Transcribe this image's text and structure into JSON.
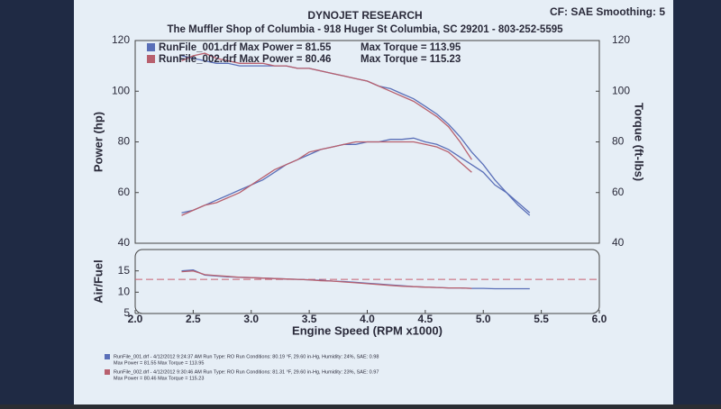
{
  "header": {
    "company": "DYNOJET RESEARCH",
    "settings": "CF: SAE  Smoothing: 5",
    "shop": "The Muffler Shop of Columbia - 918 Huger St  Columbia, SC  29201 - 803-252-5595"
  },
  "chart_data": [
    {
      "type": "line",
      "ylabel": "Power (hp)",
      "y2label": "Torque (ft-lbs)",
      "x": [
        2.4,
        2.5,
        2.6,
        2.7,
        2.8,
        2.9,
        3.0,
        3.1,
        3.2,
        3.3,
        3.4,
        3.5,
        3.6,
        3.7,
        3.8,
        3.9,
        4.0,
        4.1,
        4.2,
        4.3,
        4.4,
        4.5,
        4.6,
        4.7,
        4.8,
        4.9,
        5.0,
        5.1,
        5.2,
        5.3,
        5.4
      ],
      "xlim": [
        2,
        6
      ],
      "ylim": [
        40,
        120
      ],
      "yticks": [
        40,
        60,
        80,
        100,
        120
      ],
      "y2lim": [
        40,
        120
      ],
      "y2ticks": [
        40,
        60,
        80,
        100,
        120
      ],
      "series": [
        {
          "name": "RunFile_001.drf Max Power = 81.55",
          "color": "#5a6fb8",
          "values": [
            52,
            53,
            55,
            57,
            59,
            61,
            63,
            65,
            68,
            71,
            73,
            75,
            77,
            78,
            79,
            79,
            80,
            80,
            81,
            81,
            81.5,
            80,
            79,
            77,
            74,
            71,
            68,
            63,
            60,
            56,
            52
          ]
        },
        {
          "name": "RunFile_002.drf Max Power = 80.46",
          "color": "#b8606e",
          "values": [
            51,
            53,
            55,
            56,
            58,
            60,
            63,
            66,
            69,
            71,
            73,
            76,
            77,
            78,
            79,
            80,
            80,
            80,
            80,
            80,
            80,
            79,
            78,
            76,
            72,
            68,
            null,
            null,
            null,
            null,
            null
          ]
        },
        {
          "name": "Max Torque = 113.95",
          "color": "#5a6fb8",
          "axis": "y2",
          "values": [
            114,
            113,
            112,
            111,
            111,
            110,
            110,
            110,
            110,
            110,
            109,
            109,
            108,
            107,
            106,
            105,
            104,
            102,
            101,
            99,
            97,
            94,
            91,
            87,
            82,
            76,
            71,
            65,
            60,
            55,
            51
          ]
        },
        {
          "name": "Max Torque = 115.23",
          "color": "#b8606e",
          "axis": "y2",
          "values": [
            112,
            114,
            115,
            113,
            112,
            111,
            111,
            111,
            110,
            110,
            109,
            109,
            108,
            107,
            106,
            105,
            104,
            102,
            100,
            98,
            96,
            93,
            90,
            86,
            80,
            73,
            null,
            null,
            null,
            null,
            null
          ]
        }
      ]
    },
    {
      "type": "line",
      "ylabel": "Air/Fuel",
      "xlabel": "Engine Speed (RPM x1000)",
      "x": [
        2.4,
        2.5,
        2.6,
        2.7,
        2.8,
        2.9,
        3.0,
        3.1,
        3.2,
        3.3,
        3.4,
        3.5,
        3.6,
        3.7,
        3.8,
        3.9,
        4.0,
        4.1,
        4.2,
        4.3,
        4.4,
        4.5,
        4.6,
        4.7,
        4.8,
        4.9,
        5.0,
        5.1,
        5.2,
        5.3,
        5.4
      ],
      "xlim": [
        2,
        6
      ],
      "xticks": [
        {
          "value": 2,
          "label": "2.0"
        },
        {
          "value": 2.5,
          "label": "2.5"
        },
        {
          "value": 3,
          "label": "3.0"
        },
        {
          "value": 3.5,
          "label": "3.5"
        },
        {
          "value": 4,
          "label": "4.0"
        },
        {
          "value": 4.5,
          "label": "4.5"
        },
        {
          "value": 5,
          "label": "5.0"
        },
        {
          "value": 5.5,
          "label": "5.5"
        },
        {
          "value": 6,
          "label": "6.0"
        }
      ],
      "ylim": [
        5,
        20
      ],
      "yticks": [
        5,
        10,
        15
      ],
      "ref_line": 13,
      "ref_color": "#c86070",
      "series": [
        {
          "name": "RunFile_001.drf",
          "color": "#5a6fb8",
          "values": [
            15,
            15.2,
            14,
            13.8,
            13.6,
            13.5,
            13.4,
            13.3,
            13.2,
            13.1,
            13,
            12.9,
            12.8,
            12.6,
            12.5,
            12.3,
            12.1,
            11.9,
            11.7,
            11.5,
            11.3,
            11.2,
            11.1,
            11,
            11,
            10.9,
            10.9,
            10.8,
            10.8,
            10.8,
            10.8
          ]
        },
        {
          "name": "RunFile_002.drf",
          "color": "#b8606e",
          "values": [
            14.8,
            15,
            14.1,
            13.9,
            13.7,
            13.5,
            13.4,
            13.3,
            13.2,
            13.1,
            13,
            12.9,
            12.7,
            12.6,
            12.4,
            12.2,
            12,
            11.8,
            11.6,
            11.4,
            11.3,
            11.2,
            11.1,
            11,
            11,
            10.9,
            null,
            null,
            null,
            null,
            null
          ]
        }
      ]
    }
  ],
  "footer": [
    {
      "line1": "RunFile_001.drf - 4/12/2012 9:24:37 AM   Run Type: RO   Run Conditions: 80.19 °F, 29.60 in-Hg,   Humidity: 24%,  SAE: 0.98",
      "line2": "Max Power = 81.55   Max Torque = 113.95",
      "color": "#5a6fb8"
    },
    {
      "line1": "RunFile_002.drf - 4/12/2012 9:30:46 AM   Run Type: RO   Run Conditions: 81.31 °F, 29.60 in-Hg,   Humidity: 23%,  SAE: 0.97",
      "line2": "Max Power = 80.46   Max Torque = 115.23",
      "color": "#b8606e"
    }
  ]
}
